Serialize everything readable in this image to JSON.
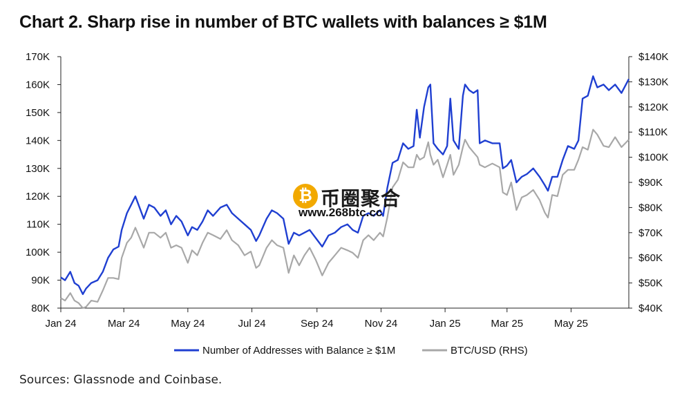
{
  "title": "Chart 2. Sharp rise in number of BTC wallets with balances ≥ $1M",
  "source": "Sources: Glassnode and Coinbase.",
  "watermark": {
    "coin_symbol": "₿",
    "text_cn": "币圈聚合",
    "url": "www.268btc.cc"
  },
  "colors": {
    "addresses": "#1f3fd1",
    "btc_usd": "#a8a8a8",
    "axis": "#222222"
  },
  "chart_data": {
    "type": "line",
    "title": "Chart 2. Sharp rise in number of BTC wallets with balances ≥ $1M",
    "x_range": [
      "2024-01-01",
      "2025-06-25"
    ],
    "x_tick_labels": [
      {
        "label": "Jan 24",
        "date": "2024-01-01"
      },
      {
        "label": "Mar 24",
        "date": "2024-03-01"
      },
      {
        "label": "May 24",
        "date": "2024-05-01"
      },
      {
        "label": "Jul 24",
        "date": "2024-07-01"
      },
      {
        "label": "Sep 24",
        "date": "2024-09-01"
      },
      {
        "label": "Nov 24",
        "date": "2024-11-01"
      },
      {
        "label": "Jan 25",
        "date": "2025-01-01"
      },
      {
        "label": "Mar 25",
        "date": "2025-03-01"
      },
      {
        "label": "May 25",
        "date": "2025-05-01"
      }
    ],
    "y_left": {
      "range": [
        80000,
        170000
      ],
      "tick_labels": [
        "80K",
        "90K",
        "100K",
        "110K",
        "120K",
        "130K",
        "140K",
        "150K",
        "160K",
        "170K"
      ]
    },
    "y_right": {
      "range": [
        40000,
        140000
      ],
      "tick_labels": [
        "$40K",
        "$50K",
        "$60K",
        "$70K",
        "$80K",
        "$90K",
        "$100K",
        "$110K",
        "$120K",
        "$130K",
        "$140K"
      ]
    },
    "grid": false,
    "legend_position": "bottom-center",
    "series": [
      {
        "name": "Number of Addresses with Balance ≥ $1M",
        "axis": "left",
        "color": "#1f3fd1",
        "points": [
          [
            "2024-01-01",
            91000
          ],
          [
            "2024-01-05",
            90000
          ],
          [
            "2024-01-10",
            93000
          ],
          [
            "2024-01-14",
            89000
          ],
          [
            "2024-01-18",
            88000
          ],
          [
            "2024-01-22",
            85000
          ],
          [
            "2024-01-25",
            87000
          ],
          [
            "2024-01-30",
            89000
          ],
          [
            "2024-02-05",
            90000
          ],
          [
            "2024-02-10",
            93000
          ],
          [
            "2024-02-15",
            98000
          ],
          [
            "2024-02-20",
            101000
          ],
          [
            "2024-02-25",
            102000
          ],
          [
            "2024-02-28",
            108000
          ],
          [
            "2024-03-04",
            114000
          ],
          [
            "2024-03-08",
            117000
          ],
          [
            "2024-03-12",
            120000
          ],
          [
            "2024-03-16",
            116000
          ],
          [
            "2024-03-20",
            112000
          ],
          [
            "2024-03-25",
            117000
          ],
          [
            "2024-03-30",
            116000
          ],
          [
            "2024-04-05",
            113000
          ],
          [
            "2024-04-10",
            115000
          ],
          [
            "2024-04-15",
            110000
          ],
          [
            "2024-04-20",
            113000
          ],
          [
            "2024-04-25",
            111000
          ],
          [
            "2024-05-01",
            106000
          ],
          [
            "2024-05-05",
            109000
          ],
          [
            "2024-05-10",
            108000
          ],
          [
            "2024-05-15",
            111000
          ],
          [
            "2024-05-20",
            115000
          ],
          [
            "2024-05-25",
            113000
          ],
          [
            "2024-06-01",
            116000
          ],
          [
            "2024-06-07",
            117000
          ],
          [
            "2024-06-12",
            114000
          ],
          [
            "2024-06-18",
            112000
          ],
          [
            "2024-06-24",
            110000
          ],
          [
            "2024-06-30",
            108000
          ],
          [
            "2024-07-05",
            104000
          ],
          [
            "2024-07-08",
            106000
          ],
          [
            "2024-07-15",
            112000
          ],
          [
            "2024-07-20",
            115000
          ],
          [
            "2024-07-25",
            114000
          ],
          [
            "2024-07-31",
            112000
          ],
          [
            "2024-08-05",
            103000
          ],
          [
            "2024-08-10",
            107000
          ],
          [
            "2024-08-15",
            106000
          ],
          [
            "2024-08-20",
            107000
          ],
          [
            "2024-08-25",
            108000
          ],
          [
            "2024-08-31",
            105000
          ],
          [
            "2024-09-06",
            102000
          ],
          [
            "2024-09-12",
            106000
          ],
          [
            "2024-09-18",
            107000
          ],
          [
            "2024-09-24",
            109000
          ],
          [
            "2024-09-30",
            110000
          ],
          [
            "2024-10-05",
            108000
          ],
          [
            "2024-10-10",
            107000
          ],
          [
            "2024-10-15",
            113000
          ],
          [
            "2024-10-20",
            114000
          ],
          [
            "2024-10-25",
            113000
          ],
          [
            "2024-10-31",
            115000
          ],
          [
            "2024-11-03",
            113000
          ],
          [
            "2024-11-07",
            123000
          ],
          [
            "2024-11-12",
            132000
          ],
          [
            "2024-11-17",
            133000
          ],
          [
            "2024-11-22",
            139000
          ],
          [
            "2024-11-27",
            137000
          ],
          [
            "2024-12-02",
            138000
          ],
          [
            "2024-12-05",
            151000
          ],
          [
            "2024-12-08",
            141000
          ],
          [
            "2024-12-12",
            152000
          ],
          [
            "2024-12-16",
            159000
          ],
          [
            "2024-12-18",
            160000
          ],
          [
            "2024-12-21",
            139000
          ],
          [
            "2024-12-25",
            137000
          ],
          [
            "2024-12-30",
            135000
          ],
          [
            "2025-01-03",
            138000
          ],
          [
            "2025-01-06",
            155000
          ],
          [
            "2025-01-09",
            140000
          ],
          [
            "2025-01-14",
            137000
          ],
          [
            "2025-01-18",
            156000
          ],
          [
            "2025-01-20",
            160000
          ],
          [
            "2025-01-24",
            158000
          ],
          [
            "2025-01-28",
            157000
          ],
          [
            "2025-02-01",
            158000
          ],
          [
            "2025-02-03",
            139000
          ],
          [
            "2025-02-08",
            140000
          ],
          [
            "2025-02-15",
            139000
          ],
          [
            "2025-02-22",
            139000
          ],
          [
            "2025-02-25",
            130000
          ],
          [
            "2025-03-01",
            131000
          ],
          [
            "2025-03-05",
            133000
          ],
          [
            "2025-03-10",
            125000
          ],
          [
            "2025-03-15",
            127000
          ],
          [
            "2025-03-20",
            128000
          ],
          [
            "2025-03-26",
            130000
          ],
          [
            "2025-04-01",
            127000
          ],
          [
            "2025-04-06",
            124000
          ],
          [
            "2025-04-09",
            122000
          ],
          [
            "2025-04-13",
            127000
          ],
          [
            "2025-04-18",
            127000
          ],
          [
            "2025-04-23",
            133000
          ],
          [
            "2025-04-28",
            138000
          ],
          [
            "2025-05-04",
            137000
          ],
          [
            "2025-05-08",
            140000
          ],
          [
            "2025-05-12",
            155000
          ],
          [
            "2025-05-17",
            156000
          ],
          [
            "2025-05-22",
            163000
          ],
          [
            "2025-05-26",
            159000
          ],
          [
            "2025-06-01",
            160000
          ],
          [
            "2025-06-06",
            158000
          ],
          [
            "2025-06-12",
            160000
          ],
          [
            "2025-06-18",
            157000
          ],
          [
            "2025-06-25",
            162000
          ]
        ]
      },
      {
        "name": "BTC/USD (RHS)",
        "axis": "right",
        "color": "#a8a8a8",
        "points": [
          [
            "2024-01-01",
            44000
          ],
          [
            "2024-01-05",
            43000
          ],
          [
            "2024-01-10",
            46000
          ],
          [
            "2024-01-14",
            43000
          ],
          [
            "2024-01-18",
            42000
          ],
          [
            "2024-01-22",
            40000
          ],
          [
            "2024-01-25",
            40500
          ],
          [
            "2024-01-30",
            43000
          ],
          [
            "2024-02-05",
            42500
          ],
          [
            "2024-02-10",
            47000
          ],
          [
            "2024-02-15",
            52000
          ],
          [
            "2024-02-20",
            52000
          ],
          [
            "2024-02-25",
            51500
          ],
          [
            "2024-02-28",
            60000
          ],
          [
            "2024-03-04",
            66000
          ],
          [
            "2024-03-08",
            68000
          ],
          [
            "2024-03-12",
            72000
          ],
          [
            "2024-03-16",
            68000
          ],
          [
            "2024-03-20",
            64000
          ],
          [
            "2024-03-25",
            70000
          ],
          [
            "2024-03-30",
            70000
          ],
          [
            "2024-04-05",
            68000
          ],
          [
            "2024-04-10",
            70000
          ],
          [
            "2024-04-15",
            64000
          ],
          [
            "2024-04-20",
            65000
          ],
          [
            "2024-04-25",
            64000
          ],
          [
            "2024-05-01",
            58000
          ],
          [
            "2024-05-05",
            63000
          ],
          [
            "2024-05-10",
            61000
          ],
          [
            "2024-05-15",
            66000
          ],
          [
            "2024-05-20",
            70000
          ],
          [
            "2024-05-25",
            69000
          ],
          [
            "2024-06-01",
            67500
          ],
          [
            "2024-06-07",
            71000
          ],
          [
            "2024-06-12",
            67000
          ],
          [
            "2024-06-18",
            65000
          ],
          [
            "2024-06-24",
            61000
          ],
          [
            "2024-06-30",
            62500
          ],
          [
            "2024-07-05",
            56000
          ],
          [
            "2024-07-08",
            57000
          ],
          [
            "2024-07-15",
            64000
          ],
          [
            "2024-07-20",
            67000
          ],
          [
            "2024-07-25",
            65000
          ],
          [
            "2024-07-31",
            64000
          ],
          [
            "2024-08-05",
            54000
          ],
          [
            "2024-08-10",
            61000
          ],
          [
            "2024-08-15",
            57000
          ],
          [
            "2024-08-20",
            61000
          ],
          [
            "2024-08-25",
            64000
          ],
          [
            "2024-08-31",
            59000
          ],
          [
            "2024-09-06",
            53000
          ],
          [
            "2024-09-12",
            58000
          ],
          [
            "2024-09-18",
            61000
          ],
          [
            "2024-09-24",
            64000
          ],
          [
            "2024-09-30",
            63000
          ],
          [
            "2024-10-05",
            62000
          ],
          [
            "2024-10-10",
            60000
          ],
          [
            "2024-10-15",
            67000
          ],
          [
            "2024-10-20",
            69000
          ],
          [
            "2024-10-25",
            67000
          ],
          [
            "2024-10-31",
            70000
          ],
          [
            "2024-11-03",
            68500
          ],
          [
            "2024-11-07",
            76000
          ],
          [
            "2024-11-12",
            88000
          ],
          [
            "2024-11-17",
            91000
          ],
          [
            "2024-11-22",
            98000
          ],
          [
            "2024-11-27",
            96000
          ],
          [
            "2024-12-02",
            96000
          ],
          [
            "2024-12-05",
            101000
          ],
          [
            "2024-12-08",
            99000
          ],
          [
            "2024-12-12",
            100000
          ],
          [
            "2024-12-16",
            106000
          ],
          [
            "2024-12-18",
            101000
          ],
          [
            "2024-12-21",
            97000
          ],
          [
            "2024-12-25",
            99000
          ],
          [
            "2024-12-30",
            92000
          ],
          [
            "2025-01-03",
            97000
          ],
          [
            "2025-01-06",
            101000
          ],
          [
            "2025-01-09",
            93000
          ],
          [
            "2025-01-14",
            97000
          ],
          [
            "2025-01-18",
            104000
          ],
          [
            "2025-01-20",
            107000
          ],
          [
            "2025-01-24",
            104000
          ],
          [
            "2025-01-28",
            102000
          ],
          [
            "2025-02-01",
            100000
          ],
          [
            "2025-02-03",
            97000
          ],
          [
            "2025-02-08",
            96000
          ],
          [
            "2025-02-15",
            97500
          ],
          [
            "2025-02-22",
            96000
          ],
          [
            "2025-02-25",
            86000
          ],
          [
            "2025-03-01",
            85000
          ],
          [
            "2025-03-05",
            90000
          ],
          [
            "2025-03-10",
            79000
          ],
          [
            "2025-03-15",
            84000
          ],
          [
            "2025-03-20",
            85000
          ],
          [
            "2025-03-26",
            87000
          ],
          [
            "2025-04-01",
            83000
          ],
          [
            "2025-04-06",
            78000
          ],
          [
            "2025-04-09",
            76000
          ],
          [
            "2025-04-13",
            85000
          ],
          [
            "2025-04-18",
            84500
          ],
          [
            "2025-04-23",
            93000
          ],
          [
            "2025-04-28",
            95000
          ],
          [
            "2025-05-04",
            95000
          ],
          [
            "2025-05-08",
            99000
          ],
          [
            "2025-05-12",
            104000
          ],
          [
            "2025-05-17",
            103000
          ],
          [
            "2025-05-22",
            111000
          ],
          [
            "2025-05-26",
            109000
          ],
          [
            "2025-06-01",
            104500
          ],
          [
            "2025-06-06",
            104000
          ],
          [
            "2025-06-12",
            108000
          ],
          [
            "2025-06-18",
            104000
          ],
          [
            "2025-06-25",
            107000
          ]
        ]
      }
    ]
  }
}
